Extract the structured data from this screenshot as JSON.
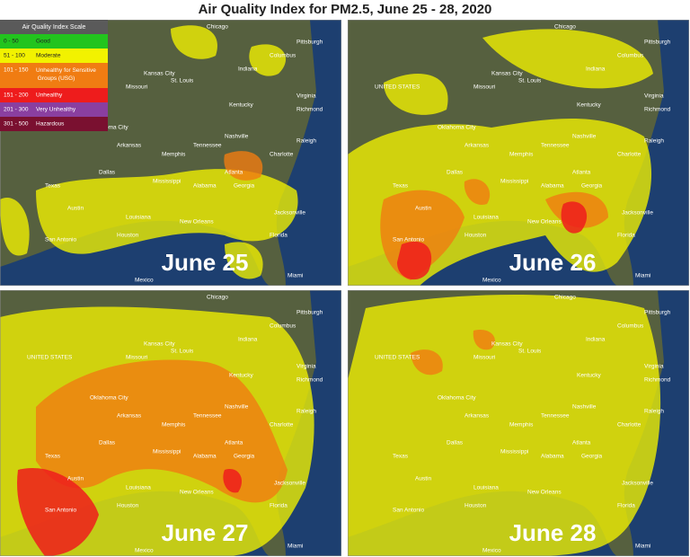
{
  "title": "Air Quality Index for PM2.5, June 25 - 28, 2020",
  "legend": {
    "title": "Air Quality Index Scale",
    "items": [
      {
        "range": "0 - 50",
        "label": "Good",
        "color": "#22c41e"
      },
      {
        "range": "51 - 100",
        "label": "Moderate",
        "color": "#f2f200"
      },
      {
        "range": "101 - 150",
        "label": "Unhealthy for Sensitive Groups (USG)",
        "color": "#f07c12"
      },
      {
        "range": "151 - 200",
        "label": "Unhealthy",
        "color": "#ee1c1c"
      },
      {
        "range": "201 - 300",
        "label": "Very Unhealthy",
        "color": "#8a3fa0"
      },
      {
        "range": "301 - 500",
        "label": "Hazardous",
        "color": "#7a1030"
      }
    ]
  },
  "map_labels": [
    "UNITED STATES",
    "Chicago",
    "Indiana",
    "Columbus",
    "Pittsburgh",
    "Kansas City",
    "Missouri",
    "St. Louis",
    "Kentucky",
    "Virginia",
    "Richmond",
    "Oklahoma City",
    "Nashville",
    "Tennessee",
    "Raleigh",
    "Arkansas",
    "Memphis",
    "Charlotte",
    "Dallas",
    "Mississippi",
    "Atlanta",
    "Georgia",
    "Alabama",
    "Texas",
    "Louisiana",
    "Austin",
    "Houston",
    "New Orleans",
    "Jacksonville",
    "San Antonio",
    "Florida",
    "Miami",
    "Mexico"
  ],
  "panels": [
    {
      "date": "June 25"
    },
    {
      "date": "June 26"
    },
    {
      "date": "June 27"
    },
    {
      "date": "June 28"
    }
  ]
}
